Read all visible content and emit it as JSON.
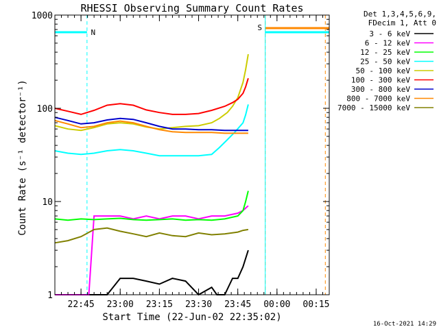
{
  "chart_data": {
    "type": "line",
    "title": "RHESSI Observing Summary Count Rates",
    "xlabel": "Start Time (22-Jun-02 22:35:02)",
    "ylabel": "Count Rate (s⁻¹ detector⁻¹)",
    "yscale": "log",
    "ylim": [
      1,
      1000
    ],
    "xlim_minutes": [
      0,
      105
    ],
    "ytick_labels": [
      "1",
      "10",
      "100",
      "1000"
    ],
    "xticks": [
      {
        "label": "22:45",
        "minute": 10
      },
      {
        "label": "23:00",
        "minute": 25
      },
      {
        "label": "23:15",
        "minute": 40
      },
      {
        "label": "23:30",
        "minute": 55
      },
      {
        "label": "23:45",
        "minute": 70
      },
      {
        "label": "00:00",
        "minute": 85
      },
      {
        "label": "00:15",
        "minute": 100
      }
    ],
    "legend_header": [
      "Det 1,3,4,5,6,9,",
      "FDecim 1, Att 0"
    ],
    "series": [
      {
        "name": "3 - 6 keV",
        "color": "#000000",
        "x": [
          0,
          10,
          15,
          20,
          25,
          30,
          35,
          40,
          45,
          50,
          55,
          60,
          62,
          65,
          68,
          70,
          72,
          74
        ],
        "y": [
          1,
          1,
          1,
          1,
          1.5,
          1.5,
          1.4,
          1.3,
          1.5,
          1.4,
          1,
          1.2,
          1,
          1,
          1.5,
          1.5,
          2,
          3
        ]
      },
      {
        "name": "6 - 12 keV",
        "color": "#ff00ff",
        "x": [
          0,
          10,
          13,
          15,
          20,
          25,
          30,
          35,
          40,
          45,
          50,
          55,
          60,
          65,
          70,
          72,
          73,
          74
        ],
        "y": [
          1,
          1,
          1,
          7,
          7,
          7,
          6.5,
          7,
          6.5,
          7,
          7,
          6.5,
          7,
          7,
          7.5,
          8,
          8.5,
          9
        ]
      },
      {
        "name": "12 - 25 keV",
        "color": "#00ff00",
        "x": [
          0,
          5,
          10,
          15,
          20,
          25,
          30,
          35,
          40,
          45,
          50,
          55,
          60,
          65,
          70,
          72,
          73,
          74
        ],
        "y": [
          6.5,
          6.3,
          6.5,
          6.4,
          6.5,
          6.6,
          6.4,
          6.3,
          6.4,
          6.5,
          6.3,
          6.4,
          6.3,
          6.5,
          7,
          8,
          10,
          13
        ]
      },
      {
        "name": "25 - 50 keV",
        "color": "#00ffff",
        "x": [
          0,
          5,
          10,
          15,
          20,
          25,
          30,
          35,
          40,
          45,
          50,
          55,
          60,
          63,
          66,
          69,
          72,
          73,
          74
        ],
        "y": [
          35,
          33,
          32,
          33,
          35,
          36,
          35,
          33,
          31,
          31,
          31,
          31,
          32,
          38,
          46,
          56,
          70,
          85,
          110
        ]
      },
      {
        "name": "50 - 100 keV",
        "color": "#cccc00",
        "x": [
          0,
          5,
          10,
          15,
          20,
          25,
          30,
          35,
          40,
          45,
          50,
          55,
          60,
          63,
          66,
          68,
          70,
          72,
          73,
          74
        ],
        "y": [
          65,
          60,
          58,
          62,
          68,
          70,
          68,
          63,
          60,
          62,
          64,
          65,
          70,
          78,
          90,
          105,
          130,
          190,
          260,
          380
        ]
      },
      {
        "name": "100 - 300 keV",
        "color": "#ff0000",
        "x": [
          0,
          5,
          10,
          15,
          20,
          25,
          30,
          35,
          40,
          45,
          50,
          55,
          60,
          65,
          68,
          70,
          72,
          73,
          74
        ],
        "y": [
          100,
          93,
          86,
          95,
          108,
          112,
          108,
          96,
          90,
          86,
          86,
          88,
          95,
          105,
          115,
          125,
          145,
          170,
          210
        ]
      },
      {
        "name": "300 - 800 keV",
        "color": "#0000cc",
        "x": [
          0,
          5,
          10,
          15,
          20,
          25,
          30,
          35,
          40,
          45,
          50,
          55,
          60,
          65,
          70,
          72,
          74
        ],
        "y": [
          80,
          74,
          68,
          70,
          75,
          78,
          76,
          70,
          64,
          60,
          60,
          59,
          59,
          58,
          58,
          58,
          58
        ]
      },
      {
        "name": "800 - 7000 keV",
        "color": "#ff8800",
        "x": [
          0,
          5,
          10,
          15,
          20,
          25,
          30,
          35,
          40,
          45,
          50,
          55,
          60,
          65,
          70,
          72,
          74
        ],
        "y": [
          74,
          68,
          62,
          64,
          70,
          73,
          70,
          64,
          59,
          56,
          55,
          55,
          55,
          54,
          54,
          54,
          54
        ]
      },
      {
        "name": "7000 - 15000 keV",
        "color": "#808000",
        "x": [
          0,
          5,
          10,
          15,
          20,
          25,
          30,
          35,
          40,
          45,
          50,
          55,
          60,
          65,
          70,
          72,
          74
        ],
        "y": [
          3.6,
          3.8,
          4.2,
          5,
          5.2,
          4.8,
          4.5,
          4.2,
          4.6,
          4.3,
          4.2,
          4.6,
          4.4,
          4.5,
          4.7,
          4.9,
          5
        ]
      }
    ],
    "annotations": [
      {
        "label": "N",
        "kind": "night",
        "color": "#00ffff",
        "start_minute": 0,
        "end_minute": 12.3
      },
      {
        "label": "S",
        "kind": "saa",
        "color": "#ff8800",
        "start_minute": 80.5,
        "end_minute": 105
      },
      {
        "label": "",
        "kind": "night",
        "color": "#00ffff",
        "start_minute": 80.5,
        "end_minute": 105
      }
    ]
  },
  "footer": {
    "timestamp": "16-Oct-2021 14:29"
  }
}
